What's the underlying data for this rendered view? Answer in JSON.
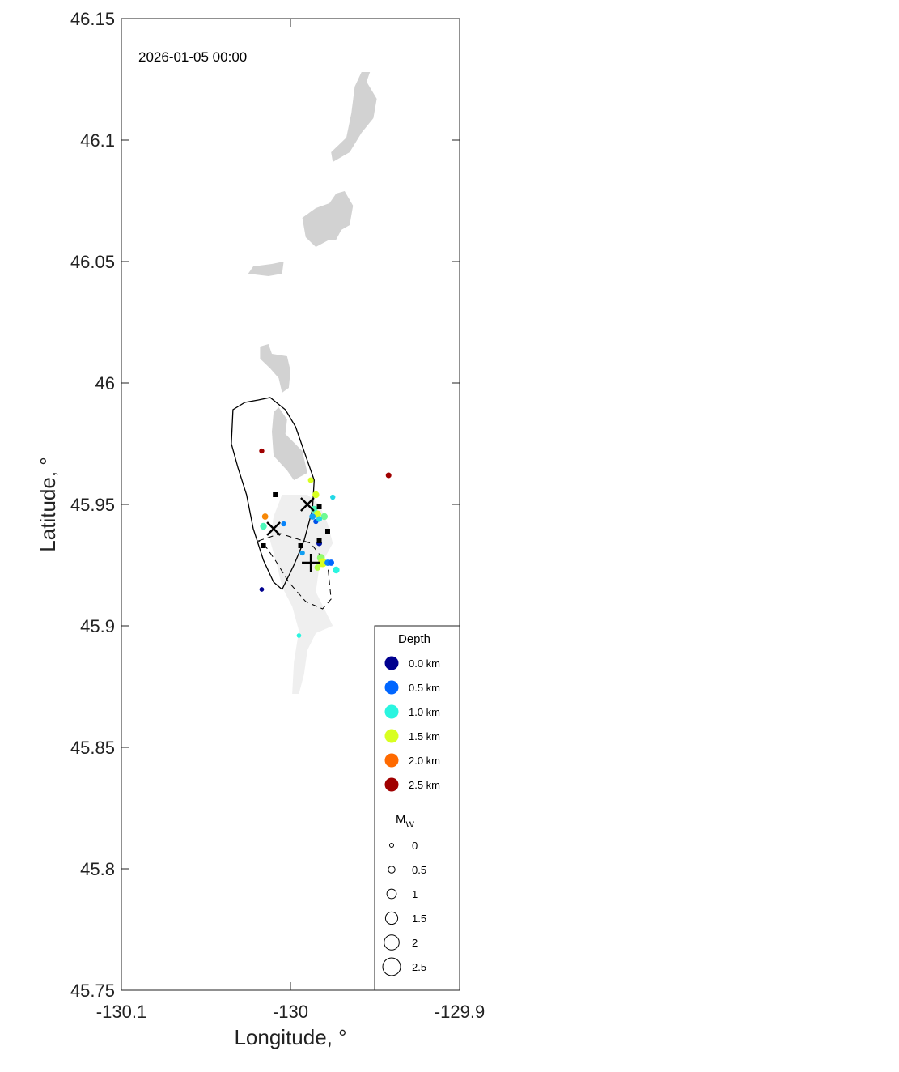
{
  "timestamp": "2026-01-05 00:00",
  "axes": {
    "xlabel": "Longitude, °",
    "ylabel": "Latitude, °",
    "xlim": [
      -130.1,
      -129.9
    ],
    "ylim": [
      45.75,
      46.15
    ],
    "xticks": [
      {
        "value": -130.1,
        "label": "-130.1"
      },
      {
        "value": -130.0,
        "label": "-130"
      },
      {
        "value": -129.9,
        "label": "-129.9"
      }
    ],
    "yticks": [
      {
        "value": 45.75,
        "label": "45.75"
      },
      {
        "value": 45.8,
        "label": "45.8"
      },
      {
        "value": 45.85,
        "label": "45.85"
      },
      {
        "value": 45.9,
        "label": "45.9"
      },
      {
        "value": 45.95,
        "label": "45.95"
      },
      {
        "value": 46.0,
        "label": "46"
      },
      {
        "value": 46.05,
        "label": "46.05"
      },
      {
        "value": 46.1,
        "label": "46.1"
      },
      {
        "value": 46.15,
        "label": "46.15"
      }
    ]
  },
  "legend": {
    "depth_title": "Depth",
    "depth": [
      {
        "label": "0.0 km",
        "color": "#00008f"
      },
      {
        "label": "0.5 km",
        "color": "#0066ff"
      },
      {
        "label": "1.0 km",
        "color": "#2af5e0"
      },
      {
        "label": "1.5 km",
        "color": "#d8ff20"
      },
      {
        "label": "2.0 km",
        "color": "#ff6a00"
      },
      {
        "label": "2.5 km",
        "color": "#a00000"
      }
    ],
    "mw_title": "M",
    "mw_sub": "W",
    "mw": [
      {
        "label": "0",
        "value": 0
      },
      {
        "label": "0.5",
        "value": 0.5
      },
      {
        "label": "1",
        "value": 1
      },
      {
        "label": "1.5",
        "value": 1.5
      },
      {
        "label": "2",
        "value": 2
      },
      {
        "label": "2.5",
        "value": 2.5
      }
    ]
  },
  "map_data": {
    "lava_flows_dark": [
      [
        [
          -129.958,
          46.128
        ],
        [
          -129.953,
          46.128
        ],
        [
          -129.955,
          46.124
        ],
        [
          -129.949,
          46.117
        ],
        [
          -129.951,
          46.109
        ],
        [
          -129.958,
          46.103
        ],
        [
          -129.965,
          46.095
        ],
        [
          -129.975,
          46.091
        ],
        [
          -129.976,
          46.095
        ],
        [
          -129.967,
          46.101
        ],
        [
          -129.964,
          46.111
        ],
        [
          -129.962,
          46.122
        ]
      ],
      [
        [
          -129.973,
          46.078
        ],
        [
          -129.968,
          46.079
        ],
        [
          -129.963,
          46.073
        ],
        [
          -129.965,
          46.065
        ],
        [
          -129.97,
          46.063
        ],
        [
          -129.973,
          46.059
        ],
        [
          -129.977,
          46.059
        ],
        [
          -129.985,
          46.056
        ],
        [
          -129.991,
          46.06
        ],
        [
          -129.993,
          46.068
        ],
        [
          -129.985,
          46.072
        ],
        [
          -129.977,
          46.074
        ]
      ],
      [
        [
          -130.011,
          46.049
        ],
        [
          -130.004,
          46.05
        ],
        [
          -130.005,
          46.045
        ],
        [
          -130.013,
          46.044
        ],
        [
          -130.025,
          46.045
        ],
        [
          -130.022,
          46.048
        ]
      ],
      [
        [
          -130.018,
          46.015
        ],
        [
          -130.013,
          46.016
        ],
        [
          -130.011,
          46.012
        ],
        [
          -130.002,
          46.011
        ],
        [
          -130.0,
          46.005
        ],
        [
          -130.001,
          45.998
        ],
        [
          -130.005,
          45.996
        ],
        [
          -130.007,
          46.002
        ],
        [
          -130.012,
          46.006
        ],
        [
          -130.018,
          46.01
        ]
      ],
      [
        [
          -130.007,
          45.99
        ],
        [
          -130.002,
          45.985
        ],
        [
          -130.003,
          45.979
        ],
        [
          -129.993,
          45.972
        ],
        [
          -129.99,
          45.963
        ],
        [
          -129.998,
          45.96
        ],
        [
          -130.002,
          45.964
        ],
        [
          -130.01,
          45.97
        ],
        [
          -130.011,
          45.98
        ],
        [
          -130.01,
          45.988
        ]
      ]
    ],
    "lava_flows_light": [
      [
        [
          -130.005,
          45.954
        ],
        [
          -129.99,
          45.954
        ],
        [
          -129.983,
          45.95
        ],
        [
          -129.978,
          45.942
        ],
        [
          -129.975,
          45.934
        ],
        [
          -129.983,
          45.924
        ],
        [
          -129.985,
          45.914
        ],
        [
          -129.98,
          45.907
        ],
        [
          -129.975,
          45.9
        ],
        [
          -129.985,
          45.897
        ],
        [
          -129.99,
          45.89
        ],
        [
          -129.992,
          45.88
        ],
        [
          -129.995,
          45.872
        ],
        [
          -129.999,
          45.872
        ],
        [
          -129.998,
          45.885
        ],
        [
          -129.995,
          45.898
        ],
        [
          -129.999,
          45.908
        ],
        [
          -130.005,
          45.916
        ],
        [
          -130.008,
          45.925
        ],
        [
          -130.012,
          45.935
        ],
        [
          -130.01,
          45.945
        ]
      ]
    ],
    "outline_solid": [
      [
        -130.019,
        45.993
      ],
      [
        -130.027,
        45.992
      ],
      [
        -130.034,
        45.989
      ],
      [
        -130.035,
        45.975
      ],
      [
        -130.031,
        45.965
      ],
      [
        -130.026,
        45.954
      ],
      [
        -130.022,
        45.94
      ],
      [
        -130.016,
        45.927
      ],
      [
        -130.01,
        45.918
      ],
      [
        -130.005,
        45.915
      ],
      [
        -129.998,
        45.925
      ],
      [
        -129.992,
        45.935
      ],
      [
        -129.987,
        45.948
      ],
      [
        -129.986,
        45.96
      ],
      [
        -129.992,
        45.972
      ],
      [
        -129.997,
        45.982
      ],
      [
        -130.003,
        45.989
      ],
      [
        -130.012,
        45.994
      ]
    ],
    "outline_dashed": [
      [
        -130.019,
        45.935
      ],
      [
        -130.006,
        45.938
      ],
      [
        -129.988,
        45.934
      ],
      [
        -129.978,
        45.925
      ],
      [
        -129.976,
        45.911
      ],
      [
        -129.981,
        45.907
      ],
      [
        -129.991,
        45.91
      ],
      [
        -130.001,
        45.918
      ],
      [
        -130.009,
        45.927
      ],
      [
        -130.015,
        45.933
      ]
    ],
    "x_markers": [
      {
        "lon": -130.01,
        "lat": 45.94
      },
      {
        "lon": -129.99,
        "lat": 45.95
      }
    ],
    "plus_markers": [
      {
        "lon": -129.988,
        "lat": 45.926
      }
    ],
    "stations": [
      {
        "lon": -130.009,
        "lat": 45.954
      },
      {
        "lon": -130.016,
        "lat": 45.933
      },
      {
        "lon": -129.994,
        "lat": 45.933
      },
      {
        "lon": -129.983,
        "lat": 45.935
      },
      {
        "lon": -129.978,
        "lat": 45.939
      },
      {
        "lon": -129.983,
        "lat": 45.949
      }
    ],
    "events": [
      {
        "lon": -130.017,
        "lat": 45.972,
        "depth": 2.5,
        "mw": 0.2
      },
      {
        "lon": -129.942,
        "lat": 45.962,
        "depth": 2.5,
        "mw": 0.3
      },
      {
        "lon": -130.017,
        "lat": 45.915,
        "depth": 0.0,
        "mw": 0.1
      },
      {
        "lon": -129.995,
        "lat": 45.896,
        "depth": 1.0,
        "mw": 0.1
      },
      {
        "lon": -129.988,
        "lat": 45.96,
        "depth": 1.5,
        "mw": 0.3
      },
      {
        "lon": -129.985,
        "lat": 45.954,
        "depth": 1.5,
        "mw": 0.5
      },
      {
        "lon": -129.975,
        "lat": 45.953,
        "depth": 0.9,
        "mw": 0.2
      },
      {
        "lon": -129.986,
        "lat": 45.948,
        "depth": 1.1,
        "mw": 0.5
      },
      {
        "lon": -129.984,
        "lat": 45.946,
        "depth": 1.5,
        "mw": 0.6
      },
      {
        "lon": -129.98,
        "lat": 45.945,
        "depth": 1.2,
        "mw": 0.5
      },
      {
        "lon": -129.987,
        "lat": 45.945,
        "depth": 0.7,
        "mw": 0.4
      },
      {
        "lon": -129.985,
        "lat": 45.943,
        "depth": 0.4,
        "mw": 0.2
      },
      {
        "lon": -129.983,
        "lat": 45.944,
        "depth": 0.9,
        "mw": 0.3
      },
      {
        "lon": -130.015,
        "lat": 45.945,
        "depth": 1.9,
        "mw": 0.4
      },
      {
        "lon": -130.016,
        "lat": 45.941,
        "depth": 1.1,
        "mw": 0.5
      },
      {
        "lon": -130.004,
        "lat": 45.942,
        "depth": 0.6,
        "mw": 0.2
      },
      {
        "lon": -129.983,
        "lat": 45.934,
        "depth": 0.1,
        "mw": 0.3
      },
      {
        "lon": -129.993,
        "lat": 45.93,
        "depth": 0.7,
        "mw": 0.2
      },
      {
        "lon": -129.982,
        "lat": 45.928,
        "depth": 1.3,
        "mw": 0.7
      },
      {
        "lon": -129.981,
        "lat": 45.926,
        "depth": 1.5,
        "mw": 0.9
      },
      {
        "lon": -129.984,
        "lat": 45.924,
        "depth": 1.4,
        "mw": 0.4
      },
      {
        "lon": -129.978,
        "lat": 45.926,
        "depth": 0.6,
        "mw": 0.4
      },
      {
        "lon": -129.976,
        "lat": 45.926,
        "depth": 0.5,
        "mw": 0.4
      },
      {
        "lon": -129.973,
        "lat": 45.923,
        "depth": 1.0,
        "mw": 0.5
      }
    ]
  }
}
